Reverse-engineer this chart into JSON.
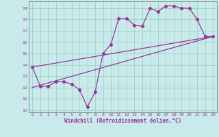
{
  "xlabel": "Windchill (Refroidissement éolien,°C)",
  "background_color": "#c8eaea",
  "grid_color": "#99ccbb",
  "line_color": "#993399",
  "x_values": [
    0,
    1,
    2,
    3,
    4,
    5,
    6,
    7,
    8,
    9,
    10,
    11,
    12,
    13,
    14,
    15,
    16,
    17,
    18,
    19,
    20,
    21,
    22,
    23
  ],
  "y_zigzag": [
    13.8,
    12.1,
    12.1,
    12.5,
    12.5,
    12.3,
    11.8,
    10.3,
    11.6,
    15.0,
    15.8,
    18.1,
    18.1,
    17.5,
    17.4,
    19.0,
    18.7,
    19.2,
    19.2,
    19.0,
    19.0,
    18.0,
    16.5,
    16.5
  ],
  "y_line1_start": 12.0,
  "y_line1_end": 16.5,
  "y_line2_start": 13.8,
  "y_line2_end": 16.5,
  "ylim": [
    9.8,
    19.6
  ],
  "xlim": [
    -0.5,
    23.5
  ],
  "yticks": [
    10,
    11,
    12,
    13,
    14,
    15,
    16,
    17,
    18,
    19
  ],
  "xticks": [
    0,
    1,
    2,
    3,
    4,
    5,
    6,
    7,
    8,
    9,
    10,
    11,
    12,
    13,
    14,
    15,
    16,
    17,
    18,
    19,
    20,
    21,
    22,
    23
  ]
}
